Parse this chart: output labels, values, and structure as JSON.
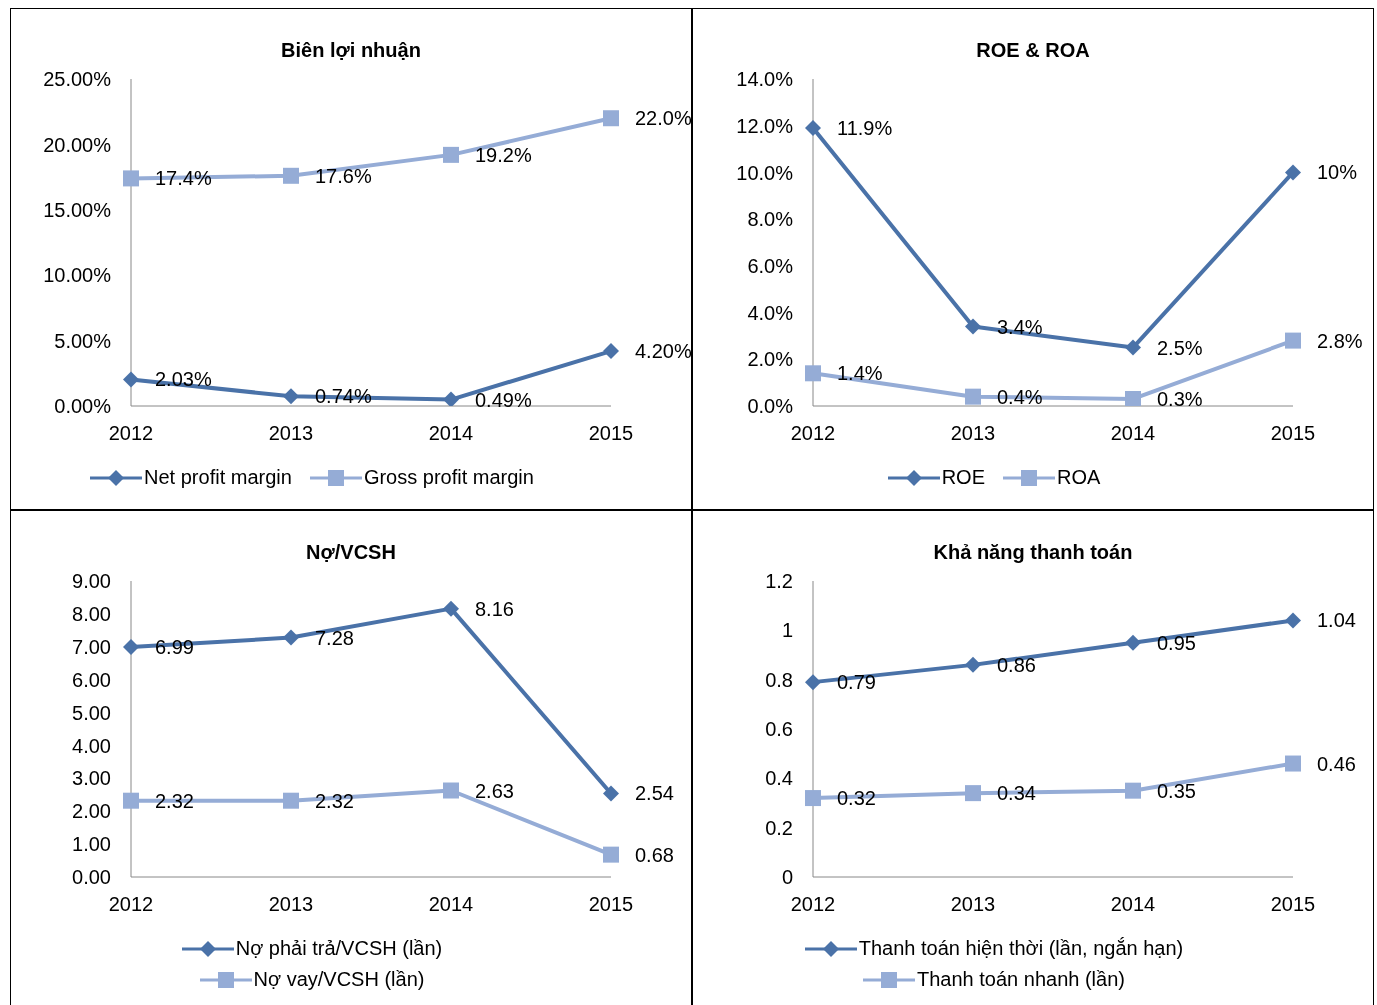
{
  "chart_data": [
    {
      "type": "line",
      "title": "Biên lợi nhuận",
      "categories": [
        "2012",
        "2013",
        "2014",
        "2015"
      ],
      "ylim": [
        0,
        25
      ],
      "yticks": [
        {
          "value": 0,
          "label": "0.00%"
        },
        {
          "value": 5,
          "label": "5.00%"
        },
        {
          "value": 10,
          "label": "10.00%"
        },
        {
          "value": 15,
          "label": "15.00%"
        },
        {
          "value": 20,
          "label": "20.00%"
        },
        {
          "value": 25,
          "label": "25.00%"
        }
      ],
      "legend": "bottom",
      "grid": false,
      "series": [
        {
          "name": "Net profit margin",
          "color": "#4a72a8",
          "marker": "diamond",
          "values": [
            2.03,
            0.74,
            0.49,
            4.2
          ],
          "value_labels": [
            "2.03%",
            "0.74%",
            "0.49%",
            "4.20%"
          ]
        },
        {
          "name": "Gross profit margin",
          "color": "#95acd6",
          "marker": "square",
          "values": [
            17.4,
            17.6,
            19.2,
            22.0
          ],
          "value_labels": [
            "17.4%",
            "17.6%",
            "19.2%",
            "22.0%"
          ]
        }
      ]
    },
    {
      "type": "line",
      "title": "ROE & ROA",
      "categories": [
        "2012",
        "2013",
        "2014",
        "2015"
      ],
      "ylim": [
        0,
        14
      ],
      "yticks": [
        {
          "value": 0,
          "label": "0.0%"
        },
        {
          "value": 2,
          "label": "2.0%"
        },
        {
          "value": 4,
          "label": "4.0%"
        },
        {
          "value": 6,
          "label": "6.0%"
        },
        {
          "value": 8,
          "label": "8.0%"
        },
        {
          "value": 10,
          "label": "10.0%"
        },
        {
          "value": 12,
          "label": "12.0%"
        },
        {
          "value": 14,
          "label": "14.0%"
        }
      ],
      "legend": "bottom",
      "grid": false,
      "series": [
        {
          "name": "ROE",
          "color": "#4a72a8",
          "marker": "diamond",
          "values": [
            11.9,
            3.4,
            2.5,
            10
          ],
          "value_labels": [
            "11.9%",
            "3.4%",
            "2.5%",
            "10%"
          ]
        },
        {
          "name": "ROA",
          "color": "#95acd6",
          "marker": "square",
          "values": [
            1.4,
            0.4,
            0.3,
            2.8
          ],
          "value_labels": [
            "1.4%",
            "0.4%",
            "0.3%",
            "2.8%"
          ]
        }
      ]
    },
    {
      "type": "line",
      "title": "Nợ/VCSH",
      "categories": [
        "2012",
        "2013",
        "2014",
        "2015"
      ],
      "ylim": [
        0,
        9
      ],
      "yticks": [
        {
          "value": 0,
          "label": "0.00"
        },
        {
          "value": 1,
          "label": "1.00"
        },
        {
          "value": 2,
          "label": "2.00"
        },
        {
          "value": 3,
          "label": "3.00"
        },
        {
          "value": 4,
          "label": "4.00"
        },
        {
          "value": 5,
          "label": "5.00"
        },
        {
          "value": 6,
          "label": "6.00"
        },
        {
          "value": 7,
          "label": "7.00"
        },
        {
          "value": 8,
          "label": "8.00"
        },
        {
          "value": 9,
          "label": "9.00"
        }
      ],
      "legend": "bottom",
      "grid": false,
      "series": [
        {
          "name": "Nợ phải trả/VCSH (lần)",
          "color": "#4a72a8",
          "marker": "diamond",
          "values": [
            6.99,
            7.28,
            8.16,
            2.54
          ],
          "value_labels": [
            "6.99",
            "7.28",
            "8.16",
            "2.54"
          ]
        },
        {
          "name": "Nợ vay/VCSH (lần)",
          "color": "#95acd6",
          "marker": "square",
          "values": [
            2.32,
            2.32,
            2.63,
            0.68
          ],
          "value_labels": [
            "2.32",
            "2.32",
            "2.63",
            "0.68"
          ]
        }
      ]
    },
    {
      "type": "line",
      "title": "Khả năng thanh toán",
      "categories": [
        "2012",
        "2013",
        "2014",
        "2015"
      ],
      "ylim": [
        0,
        1.2
      ],
      "yticks": [
        0,
        0.2,
        0.4,
        0.6,
        0.8,
        1,
        1.2
      ],
      "legend": "bottom",
      "grid": false,
      "data_labels": true,
      "series": [
        {
          "name": "Thanh toán hiện thời (lần, ngắn hạn)",
          "color": "#4a72a8",
          "marker": "diamond",
          "values": [
            0.79,
            0.86,
            0.95,
            1.04
          ]
        },
        {
          "name": "Thanh toán nhanh (lần)",
          "color": "#95acd6",
          "marker": "square",
          "values": [
            0.32,
            0.34,
            0.35,
            0.46
          ]
        }
      ]
    }
  ]
}
